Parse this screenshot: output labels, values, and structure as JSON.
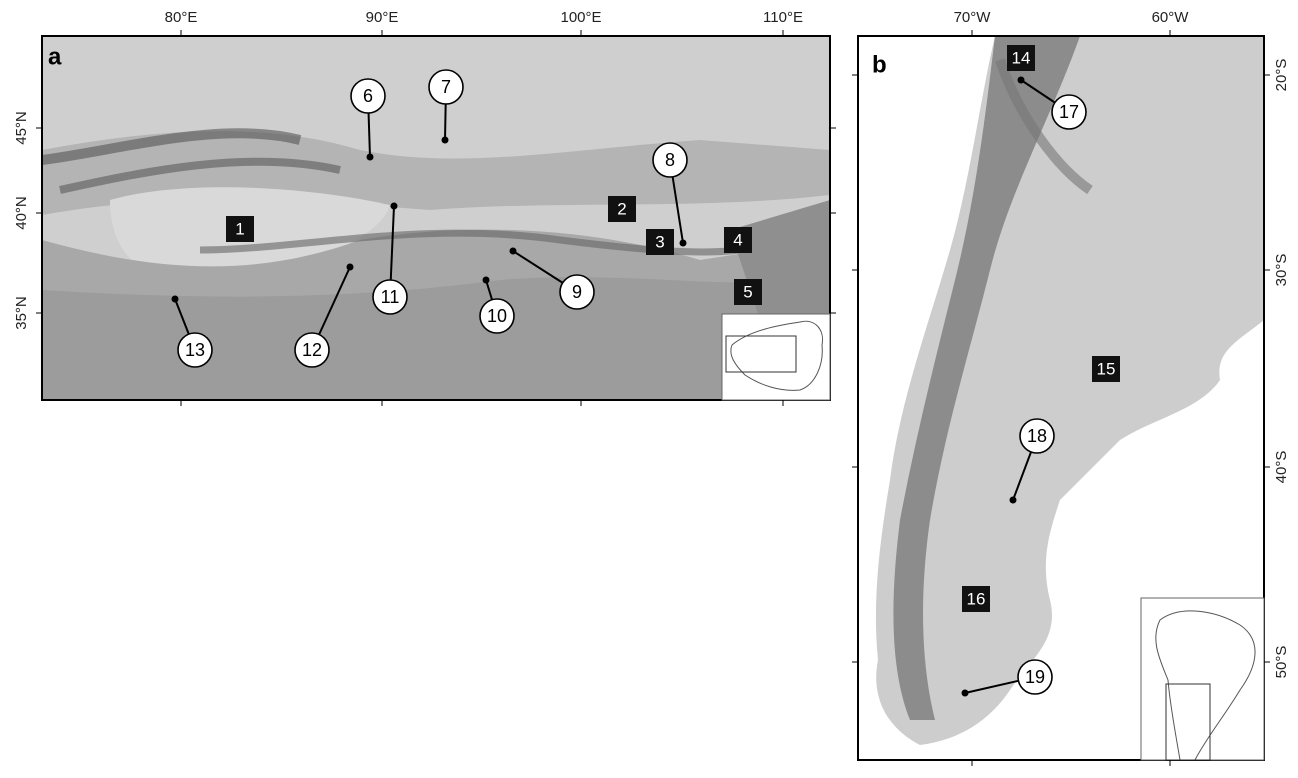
{
  "panels": [
    {
      "label": "a",
      "lon_ticks": [
        "80°E",
        "90°E",
        "100°E",
        "110°E"
      ],
      "lat_ticks": [
        "45°N",
        "40°N",
        "35°N"
      ],
      "box_labels": [
        "1",
        "2",
        "3",
        "4",
        "5"
      ],
      "circle_labels": [
        "6",
        "7",
        "8",
        "9",
        "10",
        "11",
        "12",
        "13"
      ]
    },
    {
      "label": "b",
      "lon_ticks": [
        "70°W",
        "60°W"
      ],
      "lat_ticks": [
        "20°S",
        "30°S",
        "40°S",
        "50°S"
      ],
      "box_labels": [
        "14",
        "15",
        "16"
      ],
      "circle_labels": [
        "17",
        "18",
        "19"
      ]
    }
  ]
}
